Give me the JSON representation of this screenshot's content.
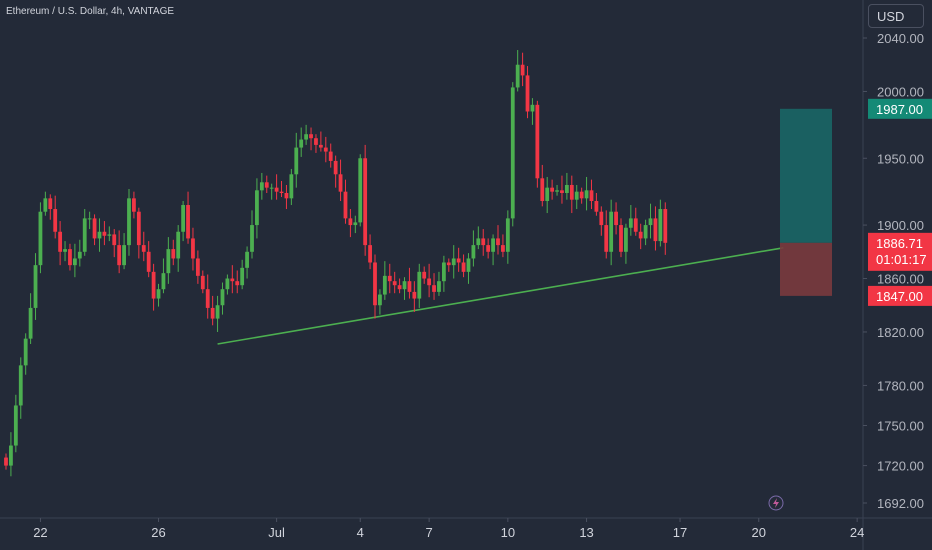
{
  "title": "Ethereum / U.S. Dollar, 4h, VANTAGE",
  "currency": "USD",
  "colors": {
    "background": "#232a38",
    "up": "#4caf50",
    "down": "#f23645",
    "trendline": "#4caf50",
    "profit_zone": "#1a6666",
    "loss_zone": "#7a3a3e",
    "price_label": "#f23645",
    "target_label": "#148a76",
    "axis_text": "#b2b5be"
  },
  "chart_data": {
    "type": "candlestick",
    "y_ticks": [
      2040,
      2000,
      1950,
      1900,
      1860,
      1820,
      1780,
      1750,
      1720,
      1692
    ],
    "y_tick_labels": [
      "2040.00",
      "2000.00",
      "1950.00",
      "1900.00",
      "1860.00",
      "1820.00",
      "1780.00",
      "1750.00",
      "1720.00",
      "1692.00"
    ],
    "x_ticks": [
      {
        "label": "22",
        "idx": 7
      },
      {
        "label": "26",
        "idx": 31
      },
      {
        "label": "Jul",
        "idx": 55
      },
      {
        "label": "4",
        "idx": 72
      },
      {
        "label": "7",
        "idx": 86
      },
      {
        "label": "10",
        "idx": 102
      },
      {
        "label": "13",
        "idx": 118
      },
      {
        "label": "17",
        "idx": 137
      },
      {
        "label": "20",
        "idx": 153
      },
      {
        "label": "24",
        "idx": 173
      }
    ],
    "closes": [
      1720,
      1735,
      1765,
      1795,
      1815,
      1838,
      1870,
      1910,
      1920,
      1912,
      1895,
      1880,
      1882,
      1870,
      1875,
      1880,
      1905,
      1905,
      1890,
      1895,
      1892,
      1893,
      1885,
      1870,
      1885,
      1920,
      1910,
      1885,
      1880,
      1865,
      1845,
      1852,
      1864,
      1882,
      1875,
      1895,
      1915,
      1890,
      1875,
      1862,
      1852,
      1838,
      1830,
      1840,
      1852,
      1860,
      1858,
      1855,
      1868,
      1880,
      1900,
      1926,
      1932,
      1928,
      1928,
      1925,
      1924,
      1920,
      1938,
      1958,
      1964,
      1968,
      1965,
      1960,
      1958,
      1955,
      1948,
      1938,
      1925,
      1905,
      1900,
      1902,
      1950,
      1885,
      1872,
      1840,
      1848,
      1862,
      1858,
      1855,
      1852,
      1858,
      1850,
      1845,
      1865,
      1860,
      1855,
      1850,
      1858,
      1872,
      1870,
      1875,
      1872,
      1865,
      1875,
      1885,
      1890,
      1885,
      1880,
      1890,
      1885,
      1880,
      1905,
      2003,
      2020,
      2012,
      1985,
      1990,
      1935,
      1918,
      1928,
      1925,
      1926,
      1924,
      1930,
      1919,
      1925,
      1920,
      1926,
      1918,
      1910,
      1900,
      1880,
      1910,
      1900,
      1880,
      1898,
      1905,
      1895,
      1890,
      1900,
      1905,
      1888,
      1912,
      1886.71
    ],
    "current_price": 1886.71,
    "current_price_label": "1886.71",
    "countdown": "01:01:17",
    "target_price": 1987,
    "target_label": "1987.00",
    "stop_price": 1847,
    "stop_label": "1847.00",
    "trendline": [
      {
        "idx": 43,
        "price": 1811
      },
      {
        "idx": 158,
        "price": 1883
      }
    ]
  }
}
